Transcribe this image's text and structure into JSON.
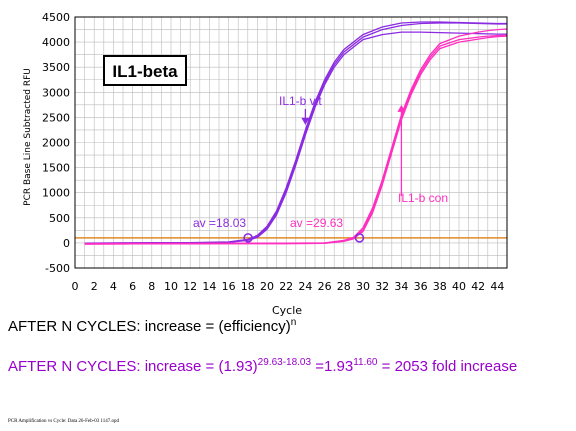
{
  "chart_data": {
    "type": "line",
    "title": "IL1-beta",
    "xlabel": "Cycle",
    "ylabel": "PCR Base Line Subtracted RFU",
    "xlim": [
      0,
      45
    ],
    "ylim": [
      -500,
      4500
    ],
    "xticks": [
      0,
      2,
      4,
      6,
      8,
      10,
      12,
      14,
      16,
      18,
      20,
      22,
      24,
      26,
      28,
      30,
      32,
      34,
      36,
      38,
      40,
      42,
      44
    ],
    "yticks": [
      -500,
      0,
      500,
      1000,
      1500,
      2000,
      2500,
      3000,
      3500,
      4000,
      4500
    ],
    "grid": true,
    "threshold": 100,
    "colors": {
      "vit": "#8a2be2",
      "con": "#ff2fc0",
      "threshold": "#e08a2a",
      "av_marker": "#8a2be2",
      "grid": "#bbbbbb"
    },
    "series": [
      {
        "group": "vit",
        "x": [
          1,
          4,
          8,
          12,
          16,
          18,
          19,
          20,
          21,
          22,
          23,
          24,
          25,
          26,
          27,
          28,
          30,
          32,
          34,
          36,
          38,
          40,
          42,
          44,
          45
        ],
        "y": [
          -10,
          -5,
          0,
          0,
          15,
          60,
          130,
          300,
          600,
          1050,
          1600,
          2200,
          2750,
          3200,
          3550,
          3800,
          4100,
          4250,
          4330,
          4370,
          4380,
          4380,
          4370,
          4360,
          4360
        ]
      },
      {
        "group": "vit",
        "x": [
          1,
          4,
          8,
          12,
          16,
          18,
          19,
          20,
          21,
          22,
          23,
          24,
          25,
          26,
          27,
          28,
          30,
          32,
          34,
          36,
          38,
          40,
          42,
          44,
          45
        ],
        "y": [
          -5,
          0,
          5,
          5,
          20,
          70,
          150,
          330,
          640,
          1100,
          1650,
          2250,
          2800,
          3250,
          3600,
          3850,
          4150,
          4300,
          4380,
          4400,
          4400,
          4390,
          4380,
          4370,
          4370
        ]
      },
      {
        "group": "vit",
        "x": [
          1,
          4,
          8,
          12,
          16,
          18,
          19,
          20,
          21,
          22,
          23,
          24,
          25,
          26,
          27,
          28,
          30,
          32,
          34,
          36,
          38,
          40,
          42,
          44,
          45
        ],
        "y": [
          -15,
          -10,
          -5,
          -5,
          10,
          50,
          110,
          270,
          560,
          1000,
          1550,
          2150,
          2700,
          3150,
          3500,
          3750,
          4050,
          4150,
          4200,
          4200,
          4190,
          4180,
          4170,
          4160,
          4160
        ]
      },
      {
        "group": "con",
        "x": [
          1,
          6,
          12,
          18,
          22,
          26,
          28,
          29,
          30,
          31,
          32,
          33,
          34,
          35,
          36,
          37,
          38,
          40,
          42,
          43,
          44,
          45
        ],
        "y": [
          -20,
          -15,
          -15,
          -10,
          -10,
          -5,
          40,
          90,
          260,
          650,
          1200,
          1850,
          2500,
          3000,
          3400,
          3700,
          3920,
          4050,
          4100,
          4120,
          4130,
          4140
        ]
      },
      {
        "group": "con",
        "x": [
          1,
          6,
          12,
          18,
          22,
          26,
          28,
          29,
          30,
          31,
          32,
          33,
          34,
          35,
          36,
          37,
          38,
          40,
          42,
          43,
          44,
          45
        ],
        "y": [
          -15,
          -10,
          -10,
          -5,
          -5,
          0,
          50,
          110,
          300,
          700,
          1250,
          1900,
          2550,
          3050,
          3450,
          3750,
          3970,
          4120,
          4200,
          4230,
          4250,
          4260
        ]
      },
      {
        "group": "con",
        "x": [
          1,
          6,
          12,
          18,
          22,
          26,
          28,
          29,
          30,
          31,
          32,
          33,
          34,
          35,
          36,
          37,
          38,
          40,
          42,
          43,
          44,
          45
        ],
        "y": [
          -25,
          -20,
          -20,
          -15,
          -15,
          -10,
          30,
          80,
          230,
          600,
          1150,
          1800,
          2450,
          2950,
          3350,
          3650,
          3870,
          4000,
          4060,
          4090,
          4110,
          4120
        ]
      }
    ],
    "markers": [
      {
        "x": 18.03,
        "y": 100
      },
      {
        "x": 29.63,
        "y": 100
      }
    ],
    "annotations": [
      {
        "text": "av =18.03",
        "x": 18.03,
        "group": "vit"
      },
      {
        "text": "av =29.63",
        "x": 29.63,
        "group": "con"
      },
      {
        "text": "IL1-b vit",
        "arrow_x": 24,
        "arrow_y": 2350,
        "group": "vit"
      },
      {
        "text": "IL1-b con",
        "arrow_x": 34,
        "arrow_y": 2750,
        "group": "con"
      }
    ]
  },
  "eq1": {
    "prefix": "AFTER N CYCLES: increase = (efficiency)",
    "sup": "n"
  },
  "eq2": {
    "prefix": "AFTER N CYCLES: increase = (1.93)",
    "sup1": "29.63-18.03",
    "mid": " =1.93",
    "sup2": "11.60",
    "suffix": " = 2053 fold increase"
  },
  "footer": "PCR Amplification vs Cycle: Data 26-Feb-03 1147.opd"
}
